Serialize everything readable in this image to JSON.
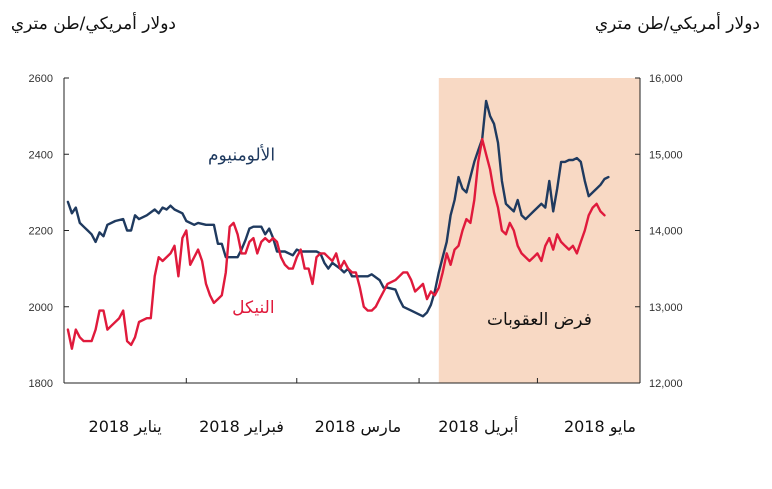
{
  "chart_data": {
    "type": "line",
    "left_axis_label": "دولار أمريكي/طن متري",
    "right_axis_label": "دولار أمريكي/طن متري",
    "left_ylim": [
      1800,
      2600
    ],
    "left_ticks": [
      "1800",
      "2000",
      "2200",
      "2400",
      "2600"
    ],
    "left_tick_values": [
      1800,
      2000,
      2200,
      2400,
      2600
    ],
    "right_ylim": [
      12000,
      16000
    ],
    "right_ticks": [
      "12,000",
      "13,000",
      "14,000",
      "15,000",
      "16,000"
    ],
    "right_tick_values": [
      12000,
      13000,
      14000,
      15000,
      16000
    ],
    "months": [
      {
        "label": "يناير 2018",
        "t": 0
      },
      {
        "label": "فبراير 2018",
        "t": 31
      },
      {
        "label": "مارس 2018",
        "t": 59
      },
      {
        "label": "أبريل 2018",
        "t": 90
      },
      {
        "label": "مايو 2018",
        "t": 120
      }
    ],
    "x_range": [
      0,
      146
    ],
    "shaded_region": {
      "start": 95,
      "end": 146,
      "label": "فرض العقوبات",
      "color": "#f8d9c4"
    },
    "series": [
      {
        "name": "الألومنيوم",
        "axis": "left",
        "color": "#1f3a5f",
        "points": [
          [
            1,
            2275
          ],
          [
            2,
            2245
          ],
          [
            3,
            2260
          ],
          [
            4,
            2220
          ],
          [
            5,
            2210
          ],
          [
            6,
            2200
          ],
          [
            7,
            2190
          ],
          [
            8,
            2170
          ],
          [
            9,
            2195
          ],
          [
            10,
            2185
          ],
          [
            11,
            2215
          ],
          [
            13,
            2225
          ],
          [
            15,
            2230
          ],
          [
            16,
            2200
          ],
          [
            17,
            2200
          ],
          [
            18,
            2240
          ],
          [
            19,
            2230
          ],
          [
            21,
            2240
          ],
          [
            23,
            2255
          ],
          [
            24,
            2245
          ],
          [
            25,
            2260
          ],
          [
            26,
            2255
          ],
          [
            27,
            2265
          ],
          [
            28,
            2255
          ],
          [
            30,
            2245
          ],
          [
            31,
            2225
          ],
          [
            33,
            2215
          ],
          [
            34,
            2220
          ],
          [
            36,
            2215
          ],
          [
            38,
            2215
          ],
          [
            39,
            2165
          ],
          [
            40,
            2165
          ],
          [
            41,
            2130
          ],
          [
            42,
            2130
          ],
          [
            44,
            2130
          ],
          [
            45,
            2150
          ],
          [
            46,
            2175
          ],
          [
            47,
            2205
          ],
          [
            48,
            2210
          ],
          [
            50,
            2210
          ],
          [
            51,
            2190
          ],
          [
            52,
            2205
          ],
          [
            53,
            2180
          ],
          [
            54,
            2145
          ],
          [
            56,
            2145
          ],
          [
            58,
            2135
          ],
          [
            59,
            2150
          ],
          [
            60,
            2145
          ],
          [
            62,
            2145
          ],
          [
            64,
            2145
          ],
          [
            65,
            2140
          ],
          [
            66,
            2115
          ],
          [
            67,
            2100
          ],
          [
            68,
            2115
          ],
          [
            70,
            2100
          ],
          [
            71,
            2090
          ],
          [
            72,
            2100
          ],
          [
            73,
            2080
          ],
          [
            75,
            2080
          ],
          [
            77,
            2080
          ],
          [
            78,
            2085
          ],
          [
            80,
            2070
          ],
          [
            81,
            2050
          ],
          [
            82,
            2050
          ],
          [
            84,
            2045
          ],
          [
            85,
            2020
          ],
          [
            86,
            2000
          ],
          [
            88,
            1990
          ],
          [
            90,
            1980
          ],
          [
            91,
            1975
          ],
          [
            92,
            1985
          ],
          [
            93,
            2005
          ],
          [
            94,
            2040
          ],
          [
            95,
            2090
          ],
          [
            96,
            2130
          ],
          [
            97,
            2170
          ],
          [
            98,
            2240
          ],
          [
            99,
            2280
          ],
          [
            100,
            2340
          ],
          [
            101,
            2310
          ],
          [
            102,
            2300
          ],
          [
            103,
            2340
          ],
          [
            104,
            2380
          ],
          [
            105,
            2410
          ],
          [
            106,
            2440
          ],
          [
            107,
            2540
          ],
          [
            108,
            2500
          ],
          [
            109,
            2480
          ],
          [
            110,
            2430
          ],
          [
            111,
            2330
          ],
          [
            112,
            2270
          ],
          [
            113,
            2260
          ],
          [
            114,
            2250
          ],
          [
            115,
            2280
          ],
          [
            116,
            2240
          ],
          [
            117,
            2230
          ],
          [
            118,
            2240
          ],
          [
            119,
            2250
          ],
          [
            120,
            2260
          ],
          [
            121,
            2270
          ],
          [
            122,
            2260
          ],
          [
            123,
            2330
          ],
          [
            124,
            2250
          ],
          [
            125,
            2310
          ],
          [
            126,
            2380
          ],
          [
            127,
            2380
          ],
          [
            128,
            2385
          ],
          [
            129,
            2385
          ],
          [
            130,
            2390
          ],
          [
            131,
            2380
          ],
          [
            132,
            2330
          ],
          [
            133,
            2290
          ],
          [
            134,
            2300
          ],
          [
            135,
            2310
          ],
          [
            136,
            2320
          ],
          [
            137,
            2335
          ],
          [
            138,
            2340
          ]
        ]
      },
      {
        "name": "النيكل",
        "axis": "right",
        "color": "#e01a3c",
        "points": [
          [
            1,
            12700
          ],
          [
            2,
            12450
          ],
          [
            3,
            12700
          ],
          [
            4,
            12600
          ],
          [
            5,
            12550
          ],
          [
            7,
            12550
          ],
          [
            8,
            12700
          ],
          [
            9,
            12950
          ],
          [
            10,
            12950
          ],
          [
            11,
            12700
          ],
          [
            12,
            12750
          ],
          [
            14,
            12850
          ],
          [
            15,
            12950
          ],
          [
            16,
            12550
          ],
          [
            17,
            12500
          ],
          [
            18,
            12600
          ],
          [
            19,
            12800
          ],
          [
            21,
            12850
          ],
          [
            22,
            12850
          ],
          [
            23,
            13400
          ],
          [
            24,
            13650
          ],
          [
            25,
            13600
          ],
          [
            27,
            13700
          ],
          [
            28,
            13800
          ],
          [
            29,
            13400
          ],
          [
            30,
            13900
          ],
          [
            31,
            14000
          ],
          [
            32,
            13550
          ],
          [
            33,
            13650
          ],
          [
            34,
            13750
          ],
          [
            35,
            13600
          ],
          [
            36,
            13300
          ],
          [
            37,
            13150
          ],
          [
            38,
            13050
          ],
          [
            39,
            13100
          ],
          [
            40,
            13150
          ],
          [
            41,
            13450
          ],
          [
            42,
            14050
          ],
          [
            43,
            14100
          ],
          [
            44,
            13950
          ],
          [
            45,
            13700
          ],
          [
            46,
            13700
          ],
          [
            47,
            13850
          ],
          [
            48,
            13900
          ],
          [
            49,
            13700
          ],
          [
            50,
            13850
          ],
          [
            51,
            13900
          ],
          [
            52,
            13850
          ],
          [
            53,
            13900
          ],
          [
            54,
            13850
          ],
          [
            55,
            13650
          ],
          [
            56,
            13550
          ],
          [
            57,
            13500
          ],
          [
            58,
            13500
          ],
          [
            59,
            13650
          ],
          [
            60,
            13750
          ],
          [
            61,
            13500
          ],
          [
            62,
            13500
          ],
          [
            63,
            13300
          ],
          [
            64,
            13650
          ],
          [
            65,
            13700
          ],
          [
            66,
            13700
          ],
          [
            67,
            13650
          ],
          [
            68,
            13600
          ],
          [
            69,
            13700
          ],
          [
            70,
            13500
          ],
          [
            71,
            13600
          ],
          [
            72,
            13500
          ],
          [
            73,
            13450
          ],
          [
            74,
            13450
          ],
          [
            75,
            13250
          ],
          [
            76,
            13000
          ],
          [
            77,
            12950
          ],
          [
            78,
            12950
          ],
          [
            79,
            13000
          ],
          [
            80,
            13100
          ],
          [
            81,
            13200
          ],
          [
            82,
            13300
          ],
          [
            84,
            13350
          ],
          [
            85,
            13400
          ],
          [
            86,
            13450
          ],
          [
            87,
            13450
          ],
          [
            88,
            13350
          ],
          [
            89,
            13200
          ],
          [
            90,
            13250
          ],
          [
            91,
            13300
          ],
          [
            92,
            13100
          ],
          [
            93,
            13200
          ],
          [
            94,
            13150
          ],
          [
            95,
            13250
          ],
          [
            96,
            13450
          ],
          [
            97,
            13700
          ],
          [
            98,
            13550
          ],
          [
            99,
            13750
          ],
          [
            100,
            13800
          ],
          [
            101,
            14000
          ],
          [
            102,
            14150
          ],
          [
            103,
            14100
          ],
          [
            104,
            14400
          ],
          [
            105,
            14900
          ],
          [
            106,
            15200
          ],
          [
            107,
            15000
          ],
          [
            108,
            14800
          ],
          [
            109,
            14500
          ],
          [
            110,
            14300
          ],
          [
            111,
            14000
          ],
          [
            112,
            13950
          ],
          [
            113,
            14100
          ],
          [
            114,
            14000
          ],
          [
            115,
            13800
          ],
          [
            116,
            13700
          ],
          [
            117,
            13650
          ],
          [
            118,
            13600
          ],
          [
            119,
            13650
          ],
          [
            120,
            13700
          ],
          [
            121,
            13600
          ],
          [
            122,
            13800
          ],
          [
            123,
            13900
          ],
          [
            124,
            13750
          ],
          [
            125,
            13950
          ],
          [
            126,
            13850
          ],
          [
            127,
            13800
          ],
          [
            128,
            13750
          ],
          [
            129,
            13800
          ],
          [
            130,
            13700
          ],
          [
            131,
            13850
          ],
          [
            132,
            14000
          ],
          [
            133,
            14200
          ],
          [
            134,
            14300
          ],
          [
            135,
            14350
          ],
          [
            136,
            14250
          ],
          [
            137,
            14200
          ]
        ]
      }
    ],
    "series_labels": [
      {
        "text": "الألومنيوم",
        "series": 0,
        "anchor_t": 45,
        "anchor_v": 2400,
        "axis": "left"
      },
      {
        "text": "النيكل",
        "series": 1,
        "anchor_t": 48,
        "anchor_v": 13000,
        "axis": "right"
      }
    ],
    "grid": false,
    "legend": "inline"
  }
}
